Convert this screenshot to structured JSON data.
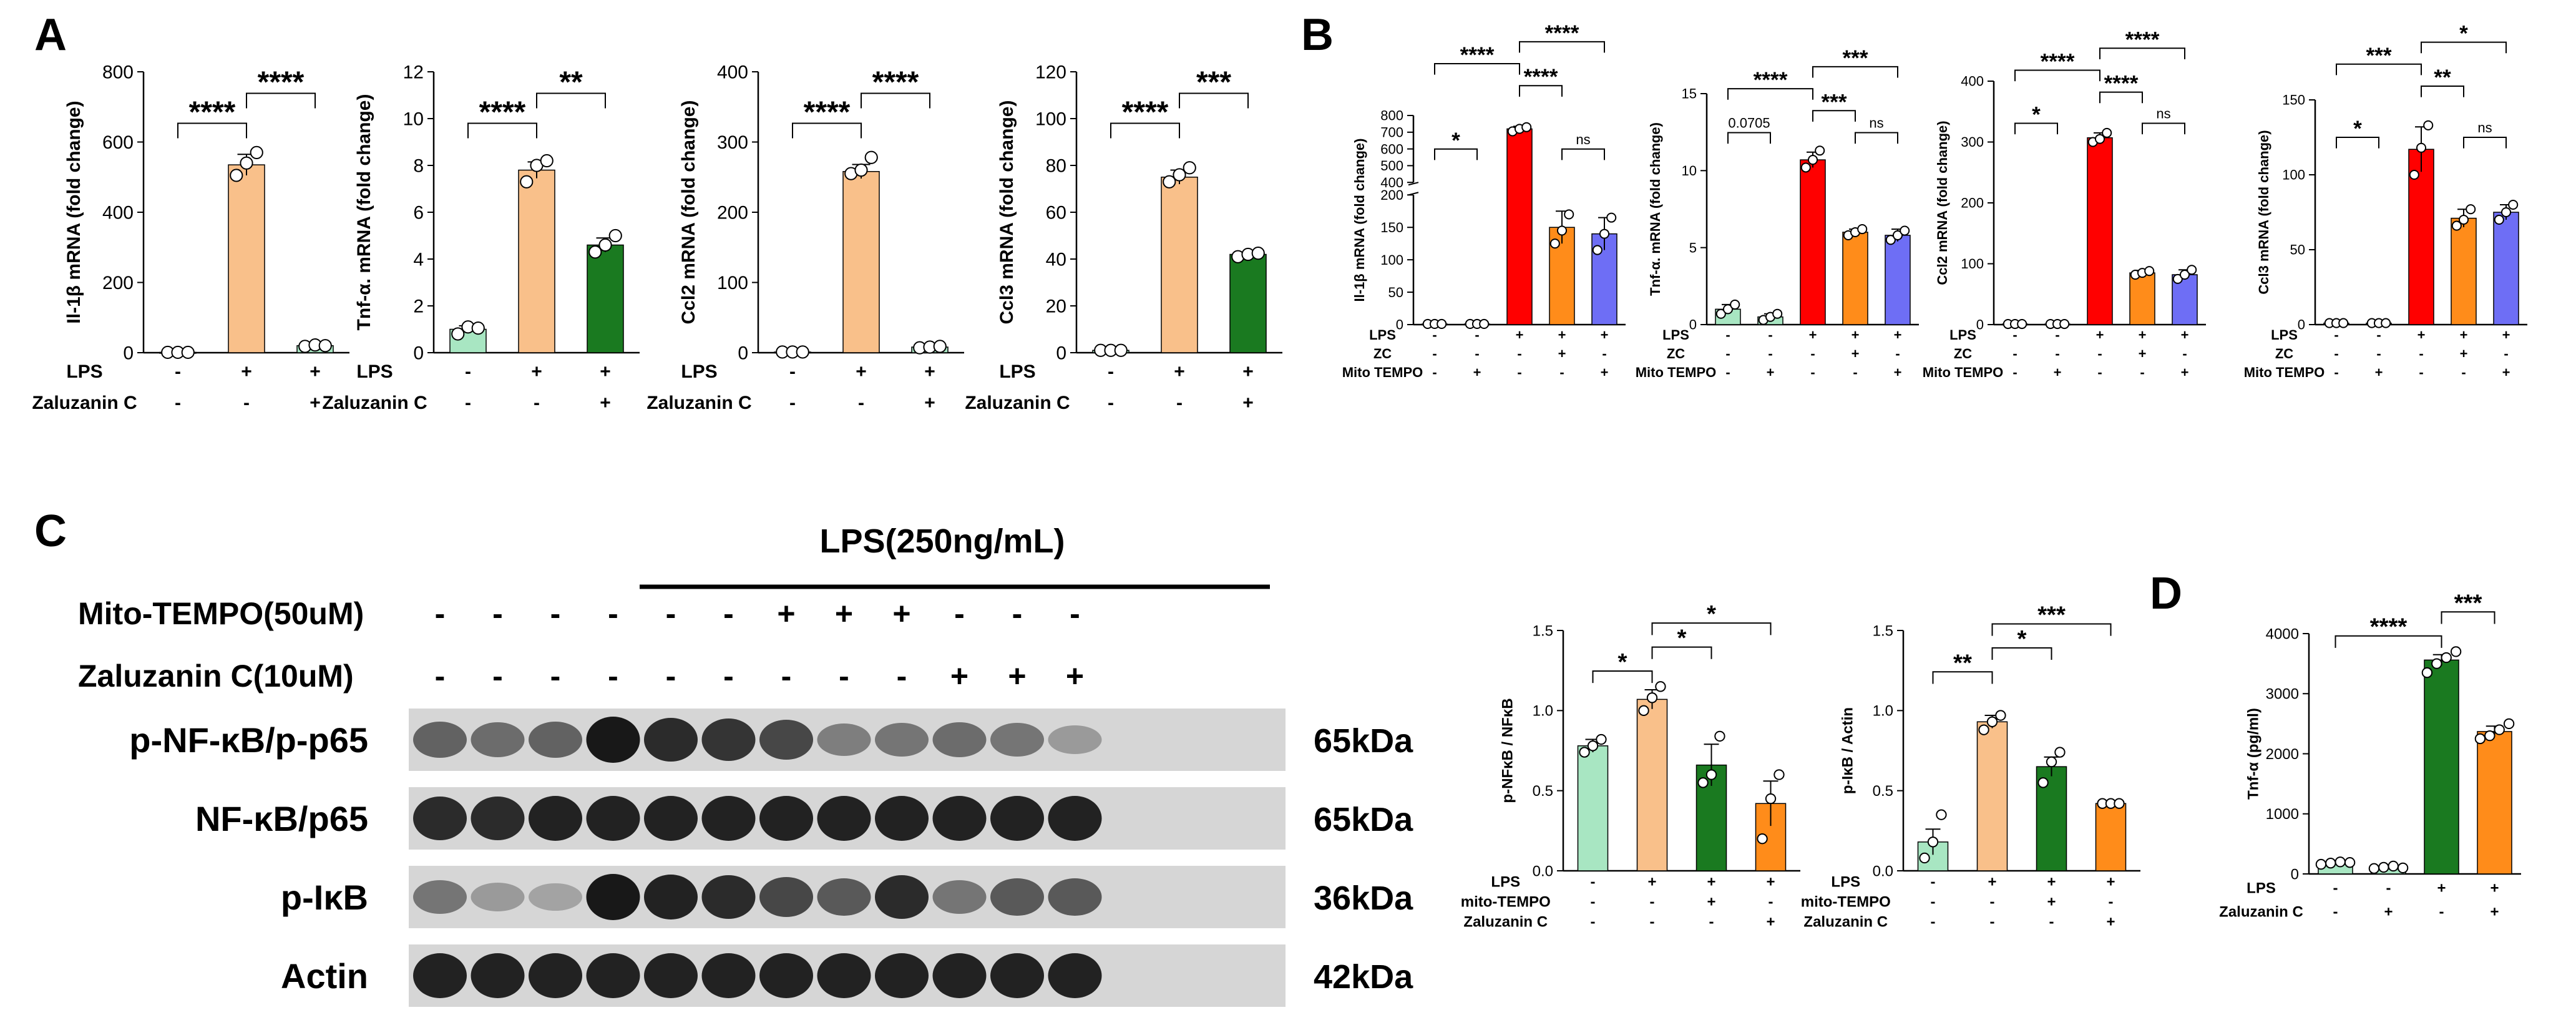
{
  "colors": {
    "ctrl": "#a8e6c2",
    "lps": "#f9c08a",
    "zc_green": "#1a7a20",
    "red": "#ff0000",
    "orange": "#ff8c1a",
    "blue": "#6e6ef5",
    "axis": "#000000"
  },
  "panels": {
    "A": "A",
    "B": "B",
    "C": "C",
    "D": "D"
  },
  "blot": {
    "lps_header": "LPS(250ng/mL)",
    "rows": [
      {
        "label": "Mito-TEMPO(50uM)",
        "signs": [
          "-",
          "-",
          "-",
          "-",
          "-",
          "-",
          "+",
          "+",
          "+",
          "-",
          "-",
          "-"
        ]
      },
      {
        "label": "Zaluzanin C(10uM)",
        "signs": [
          "-",
          "-",
          "-",
          "-",
          "-",
          "-",
          "-",
          "-",
          "-",
          "+",
          "+",
          "+"
        ]
      }
    ],
    "bands": [
      {
        "label": "p-NF-κB/p-p65",
        "kda": "65kDa",
        "intensity": [
          0.55,
          0.5,
          0.55,
          0.95,
          0.85,
          0.8,
          0.7,
          0.4,
          0.45,
          0.5,
          0.45,
          0.25
        ]
      },
      {
        "label": "NF-κB/p65",
        "kda": "65kDa",
        "intensity": [
          0.85,
          0.85,
          0.9,
          0.9,
          0.9,
          0.9,
          0.9,
          0.9,
          0.9,
          0.9,
          0.9,
          0.9
        ]
      },
      {
        "label": "p-IκB",
        "kda": "36kDa",
        "intensity": [
          0.45,
          0.25,
          0.2,
          0.95,
          0.9,
          0.85,
          0.7,
          0.6,
          0.85,
          0.45,
          0.6,
          0.6
        ]
      },
      {
        "label": "Actin",
        "kda": "42kDa",
        "intensity": [
          0.9,
          0.9,
          0.9,
          0.9,
          0.9,
          0.9,
          0.9,
          0.9,
          0.9,
          0.9,
          0.9,
          0.9
        ]
      }
    ]
  },
  "chart_data": [
    {
      "id": "A1",
      "type": "bar",
      "ylabel": "Il-1β mRNA (fold change)",
      "ylim": [
        0,
        800
      ],
      "yticks": [
        0,
        200,
        400,
        600,
        800
      ],
      "values": [
        1,
        535,
        20
      ],
      "errors": [
        0,
        30,
        5
      ],
      "points": [
        [
          1,
          1,
          1
        ],
        [
          505,
          540,
          570
        ],
        [
          18,
          22,
          20
        ]
      ],
      "colors": [
        "ctrl",
        "lps",
        "ctrl"
      ],
      "condition_rows": [
        {
          "label": "LPS",
          "signs": [
            "-",
            "+",
            "+"
          ]
        },
        {
          "label": "Zaluzanin C",
          "signs": [
            "-",
            "-",
            "+"
          ]
        }
      ],
      "sig": [
        {
          "from": 0,
          "to": 1,
          "label": "****",
          "level": 0
        },
        {
          "from": 1,
          "to": 2,
          "label": "****",
          "level": 1
        }
      ]
    },
    {
      "id": "A2",
      "type": "bar",
      "ylabel": "Tnf-α. mRNA (fold change)",
      "ylim": [
        0,
        12
      ],
      "yticks": [
        0,
        2,
        4,
        6,
        8,
        10,
        12
      ],
      "values": [
        1.0,
        7.8,
        4.6
      ],
      "errors": [
        0.15,
        0.35,
        0.3
      ],
      "points": [
        [
          0.8,
          1.1,
          1.05
        ],
        [
          7.3,
          8.0,
          8.2
        ],
        [
          4.3,
          4.6,
          5.0
        ]
      ],
      "colors": [
        "ctrl",
        "lps",
        "zc_green"
      ],
      "condition_rows": [
        {
          "label": "LPS",
          "signs": [
            "-",
            "+",
            "+"
          ]
        },
        {
          "label": "Zaluzanin C",
          "signs": [
            "-",
            "-",
            "+"
          ]
        }
      ],
      "sig": [
        {
          "from": 0,
          "to": 1,
          "label": "****",
          "level": 0
        },
        {
          "from": 1,
          "to": 2,
          "label": "**",
          "level": 1
        }
      ]
    },
    {
      "id": "A3",
      "type": "bar",
      "ylabel": "Ccl2 mRNA (fold change)",
      "ylim": [
        0,
        400
      ],
      "yticks": [
        0,
        100,
        200,
        300,
        400
      ],
      "values": [
        1,
        258,
        8
      ],
      "errors": [
        0,
        10,
        2
      ],
      "points": [
        [
          1,
          1,
          1
        ],
        [
          255,
          260,
          278
        ],
        [
          7,
          8,
          9
        ]
      ],
      "colors": [
        "ctrl",
        "lps",
        "ctrl"
      ],
      "condition_rows": [
        {
          "label": "LPS",
          "signs": [
            "-",
            "+",
            "+"
          ]
        },
        {
          "label": "Zaluzanin C",
          "signs": [
            "-",
            "-",
            "+"
          ]
        }
      ],
      "sig": [
        {
          "from": 0,
          "to": 1,
          "label": "****",
          "level": 0
        },
        {
          "from": 1,
          "to": 2,
          "label": "****",
          "level": 1
        }
      ]
    },
    {
      "id": "A4",
      "type": "bar",
      "ylabel": "Ccl3 mRNA (fold change)",
      "ylim": [
        0,
        120
      ],
      "yticks": [
        0,
        20,
        40,
        60,
        80,
        100,
        120
      ],
      "values": [
        1,
        75,
        42
      ],
      "errors": [
        0,
        3,
        1
      ],
      "points": [
        [
          1,
          1,
          1
        ],
        [
          73,
          76,
          79
        ],
        [
          41,
          42,
          42.5
        ]
      ],
      "colors": [
        "ctrl",
        "lps",
        "zc_green"
      ],
      "condition_rows": [
        {
          "label": "LPS",
          "signs": [
            "-",
            "+",
            "+"
          ]
        },
        {
          "label": "Zaluzanin C",
          "signs": [
            "-",
            "-",
            "+"
          ]
        }
      ],
      "sig": [
        {
          "from": 0,
          "to": 1,
          "label": "****",
          "level": 0
        },
        {
          "from": 1,
          "to": 2,
          "label": "***",
          "level": 1
        }
      ]
    },
    {
      "id": "B1",
      "type": "bar",
      "ylabel": "Il-1β mRNA (fold change)",
      "broken_axis": true,
      "ylim_lower": [
        0,
        200
      ],
      "yticks_lower": [
        0,
        50,
        100,
        150,
        200
      ],
      "ylim_upper": [
        400,
        800
      ],
      "yticks_upper": [
        400,
        500,
        600,
        700,
        800
      ],
      "values": [
        1,
        1,
        720,
        150,
        140
      ],
      "errors": [
        0,
        0,
        15,
        25,
        25
      ],
      "points": [
        [
          1,
          1,
          1
        ],
        [
          1,
          1,
          1
        ],
        [
          705,
          720,
          730
        ],
        [
          125,
          145,
          170
        ],
        [
          115,
          140,
          165
        ]
      ],
      "colors": [
        "ctrl",
        "ctrl",
        "red",
        "orange",
        "blue"
      ],
      "condition_rows": [
        {
          "label": "LPS",
          "signs": [
            "-",
            "-",
            "+",
            "+",
            "+"
          ]
        },
        {
          "label": "ZC",
          "signs": [
            "-",
            "-",
            "-",
            "+",
            "-"
          ]
        },
        {
          "label": "Mito TEMPO",
          "signs": [
            "-",
            "+",
            "-",
            "-",
            "+"
          ]
        }
      ],
      "sig": [
        {
          "from": 0,
          "to": 1,
          "label": "*",
          "level": 0
        },
        {
          "from": 0,
          "to": 2,
          "label": "****",
          "level": 2
        },
        {
          "from": 2,
          "to": 3,
          "label": "****",
          "level": 1
        },
        {
          "from": 2,
          "to": 4,
          "label": "****",
          "level": 3
        },
        {
          "from": 3,
          "to": 4,
          "label": "ns",
          "level": 0
        }
      ]
    },
    {
      "id": "B2",
      "type": "bar",
      "ylabel": "Tnf-α. mRNA (fold change)",
      "ylim": [
        0,
        15
      ],
      "yticks": [
        0,
        5,
        10,
        15
      ],
      "values": [
        1.0,
        0.5,
        10.7,
        6.0,
        5.8
      ],
      "errors": [
        0.3,
        0.2,
        0.5,
        0.2,
        0.4
      ],
      "points": [
        [
          0.7,
          1.0,
          1.3
        ],
        [
          0.3,
          0.5,
          0.7
        ],
        [
          10.2,
          10.7,
          11.3
        ],
        [
          5.8,
          6.0,
          6.2
        ],
        [
          5.5,
          5.8,
          6.1
        ]
      ],
      "colors": [
        "ctrl",
        "ctrl",
        "red",
        "orange",
        "blue"
      ],
      "condition_rows": [
        {
          "label": "LPS",
          "signs": [
            "-",
            "-",
            "+",
            "+",
            "+"
          ]
        },
        {
          "label": "ZC",
          "signs": [
            "-",
            "-",
            "-",
            "+",
            "-"
          ]
        },
        {
          "label": "Mito TEMPO",
          "signs": [
            "-",
            "+",
            "-",
            "-",
            "+"
          ]
        }
      ],
      "sig": [
        {
          "from": 0,
          "to": 1,
          "label": "0.0705",
          "level": 0
        },
        {
          "from": 0,
          "to": 2,
          "label": "****",
          "level": 2
        },
        {
          "from": 2,
          "to": 3,
          "label": "***",
          "level": 1
        },
        {
          "from": 2,
          "to": 4,
          "label": "***",
          "level": 3
        },
        {
          "from": 3,
          "to": 4,
          "label": "ns",
          "level": 0
        }
      ]
    },
    {
      "id": "B3",
      "type": "bar",
      "ylabel": "Ccl2 mRNA (fold change)",
      "ylim": [
        0,
        400
      ],
      "yticks": [
        0,
        100,
        200,
        300,
        400
      ],
      "values": [
        1,
        1,
        307,
        85,
        82
      ],
      "errors": [
        0,
        0,
        8,
        4,
        8
      ],
      "points": [
        [
          1,
          1,
          1
        ],
        [
          1,
          1,
          1
        ],
        [
          300,
          305,
          315
        ],
        [
          82,
          85,
          88
        ],
        [
          75,
          82,
          90
        ]
      ],
      "colors": [
        "ctrl",
        "ctrl",
        "red",
        "orange",
        "blue"
      ],
      "condition_rows": [
        {
          "label": "LPS",
          "signs": [
            "-",
            "-",
            "+",
            "+",
            "+"
          ]
        },
        {
          "label": "ZC",
          "signs": [
            "-",
            "-",
            "-",
            "+",
            "-"
          ]
        },
        {
          "label": "Mito TEMPO",
          "signs": [
            "-",
            "+",
            "-",
            "-",
            "+"
          ]
        }
      ],
      "sig": [
        {
          "from": 0,
          "to": 1,
          "label": "*",
          "level": 0
        },
        {
          "from": 0,
          "to": 2,
          "label": "****",
          "level": 2
        },
        {
          "from": 2,
          "to": 3,
          "label": "****",
          "level": 1
        },
        {
          "from": 2,
          "to": 4,
          "label": "****",
          "level": 3
        },
        {
          "from": 3,
          "to": 4,
          "label": "ns",
          "level": 0
        }
      ]
    },
    {
      "id": "B4",
      "type": "bar",
      "ylabel": "Ccl3 mRNA (fold change)",
      "ylim": [
        0,
        150
      ],
      "yticks": [
        0,
        50,
        100,
        150
      ],
      "values": [
        1,
        1,
        117,
        71,
        75
      ],
      "errors": [
        0,
        0,
        15,
        6,
        5
      ],
      "points": [
        [
          1,
          1,
          1
        ],
        [
          1,
          1,
          1
        ],
        [
          100,
          118,
          133
        ],
        [
          66,
          70,
          77
        ],
        [
          70,
          75,
          80
        ]
      ],
      "colors": [
        "ctrl",
        "ctrl",
        "red",
        "orange",
        "blue"
      ],
      "condition_rows": [
        {
          "label": "LPS",
          "signs": [
            "-",
            "-",
            "+",
            "+",
            "+"
          ]
        },
        {
          "label": "ZC",
          "signs": [
            "-",
            "-",
            "-",
            "+",
            "-"
          ]
        },
        {
          "label": "Mito TEMPO",
          "signs": [
            "-",
            "+",
            "-",
            "-",
            "+"
          ]
        }
      ],
      "sig": [
        {
          "from": 0,
          "to": 1,
          "label": "*",
          "level": 0
        },
        {
          "from": 0,
          "to": 2,
          "label": "***",
          "level": 2
        },
        {
          "from": 2,
          "to": 3,
          "label": "**",
          "level": 1
        },
        {
          "from": 2,
          "to": 4,
          "label": "*",
          "level": 3
        },
        {
          "from": 3,
          "to": 4,
          "label": "ns",
          "level": 0
        }
      ]
    },
    {
      "id": "C1",
      "type": "bar",
      "ylabel": "p-NFκB / NFκB",
      "ylim": [
        0,
        1.5
      ],
      "yticks": [
        0.0,
        0.5,
        1.0,
        1.5
      ],
      "values": [
        0.78,
        1.07,
        0.66,
        0.42
      ],
      "errors": [
        0.04,
        0.06,
        0.13,
        0.14
      ],
      "points": [
        [
          0.74,
          0.78,
          0.82
        ],
        [
          1.0,
          1.08,
          1.15
        ],
        [
          0.55,
          0.6,
          0.84
        ],
        [
          0.2,
          0.45,
          0.6
        ]
      ],
      "colors": [
        "ctrl",
        "lps",
        "zc_green",
        "orange"
      ],
      "condition_rows": [
        {
          "label": "LPS",
          "signs": [
            "-",
            "+",
            "+",
            "+"
          ]
        },
        {
          "label": "mito-TEMPO",
          "signs": [
            "-",
            "-",
            "+",
            "-"
          ]
        },
        {
          "label": "Zaluzanin C",
          "signs": [
            "-",
            "-",
            "-",
            "+"
          ]
        }
      ],
      "sig": [
        {
          "from": 0,
          "to": 1,
          "label": "*",
          "level": 0
        },
        {
          "from": 1,
          "to": 2,
          "label": "*",
          "level": 1
        },
        {
          "from": 1,
          "to": 3,
          "label": "*",
          "level": 2
        }
      ]
    },
    {
      "id": "C2",
      "type": "bar",
      "ylabel": "p-IκB / Actin",
      "ylim": [
        0,
        1.5
      ],
      "yticks": [
        0.0,
        0.5,
        1.0,
        1.5
      ],
      "values": [
        0.18,
        0.93,
        0.65,
        0.42
      ],
      "errors": [
        0.08,
        0.04,
        0.06,
        0.01
      ],
      "points": [
        [
          0.08,
          0.18,
          0.35
        ],
        [
          0.88,
          0.93,
          0.97
        ],
        [
          0.55,
          0.68,
          0.74
        ],
        [
          0.42,
          0.42,
          0.42
        ]
      ],
      "colors": [
        "ctrl",
        "lps",
        "zc_green",
        "orange"
      ],
      "condition_rows": [
        {
          "label": "LPS",
          "signs": [
            "-",
            "+",
            "+",
            "+"
          ]
        },
        {
          "label": "mito-TEMPO",
          "signs": [
            "-",
            "-",
            "+",
            "-"
          ]
        },
        {
          "label": "Zaluzanin C",
          "signs": [
            "-",
            "-",
            "-",
            "+"
          ]
        }
      ],
      "sig": [
        {
          "from": 0,
          "to": 1,
          "label": "**",
          "level": 0
        },
        {
          "from": 1,
          "to": 2,
          "label": "*",
          "level": 1
        },
        {
          "from": 1,
          "to": 3,
          "label": "***",
          "level": 2
        }
      ]
    },
    {
      "id": "D1",
      "type": "bar",
      "ylabel": "Tnf-α (pg/ml)",
      "ylim": [
        0,
        4000
      ],
      "yticks": [
        0,
        1000,
        2000,
        3000,
        4000
      ],
      "values": [
        180,
        110,
        3560,
        2370
      ],
      "errors": [
        20,
        20,
        90,
        90
      ],
      "points": [
        [
          160,
          180,
          200,
          190
        ],
        [
          90,
          110,
          130,
          100
        ],
        [
          3350,
          3500,
          3600,
          3700
        ],
        [
          2250,
          2300,
          2400,
          2500
        ]
      ],
      "colors": [
        "ctrl",
        "ctrl",
        "zc_green",
        "orange"
      ],
      "condition_rows": [
        {
          "label": "LPS",
          "signs": [
            "-",
            "-",
            "+",
            "+"
          ]
        },
        {
          "label": "Zaluzanin C",
          "signs": [
            "-",
            "+",
            "-",
            "+"
          ]
        }
      ],
      "sig": [
        {
          "from": 0,
          "to": 2,
          "label": "****",
          "level": 0
        },
        {
          "from": 2,
          "to": 3,
          "label": "***",
          "level": 1
        }
      ]
    }
  ]
}
